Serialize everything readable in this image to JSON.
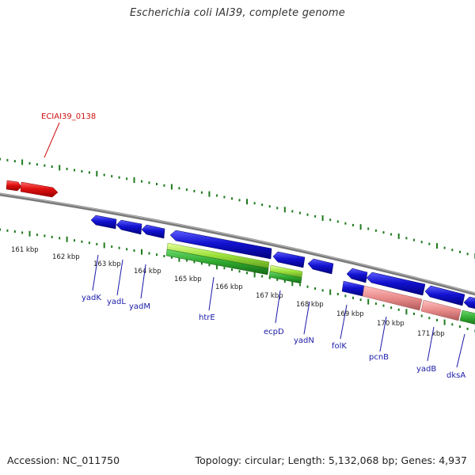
{
  "header": {
    "title": "Escherichia coli IAI39, complete genome"
  },
  "footer": {
    "accession": "Accession: NC_011750",
    "summary": "Topology: circular; Length: 5,132,068 bp; Genes: 4,937"
  },
  "colors": {
    "backbone": "#7a7a7a",
    "tick": "#1e7a1e",
    "forward_gene": "#e01010",
    "reverse_gene": "#1212d0",
    "cds_green": "#2fa82f",
    "cds_light_green": "#9be03a",
    "cds_pink": "#e88a8a",
    "gene_label": "#1a1aa8",
    "callout_label": "#d01010"
  },
  "scale_labels": [
    "161 kbp",
    "162 kbp",
    "163 kbp",
    "164 kbp",
    "165 kbp",
    "166 kbp",
    "167 kbp",
    "168 kbp",
    "169 kbp",
    "170 kbp",
    "171 kbp"
  ],
  "genes": [
    "yadK",
    "yadL",
    "yadM",
    "htrE",
    "ecpD",
    "yadN",
    "folK",
    "pcnB",
    "yadB",
    "dksA"
  ],
  "callout": "ECIAI39_0138"
}
